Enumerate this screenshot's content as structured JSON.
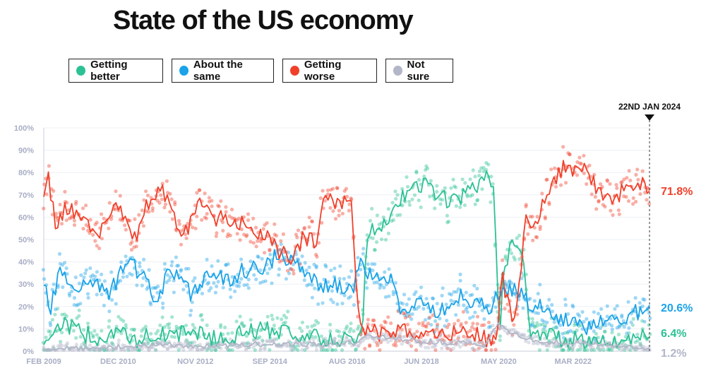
{
  "title": "State of the US economy",
  "legend": [
    {
      "label": "Getting better",
      "color": "#2cc194"
    },
    {
      "label": "About the same",
      "color": "#1aa3e8"
    },
    {
      "label": "Getting worse",
      "color": "#f0402a"
    },
    {
      "label": "Not sure",
      "color": "#b2b6c8"
    }
  ],
  "chart_data": {
    "type": "line",
    "title": "State of the US economy",
    "xlabel": "",
    "ylabel": "",
    "ylim": [
      0,
      100
    ],
    "xlim": [
      2009.08,
      2024.06
    ],
    "y_ticks": [
      "0%",
      "10%",
      "20%",
      "30%",
      "40%",
      "50%",
      "60%",
      "70%",
      "80%",
      "90%",
      "100%"
    ],
    "x_ticks": [
      {
        "label": "FEB 2009",
        "x": 2009.08
      },
      {
        "label": "DEC 2010",
        "x": 2010.92
      },
      {
        "label": "NOV 2012",
        "x": 2012.83
      },
      {
        "label": "SEP 2014",
        "x": 2014.67
      },
      {
        "label": "AUG 2016",
        "x": 2016.58
      },
      {
        "label": "JUN 2018",
        "x": 2018.42
      },
      {
        "label": "MAY 2020",
        "x": 2020.33
      },
      {
        "label": "MAR 2022",
        "x": 2022.17
      }
    ],
    "annotation": {
      "label": "22ND JAN 2024",
      "x": 2024.06
    },
    "series": [
      {
        "name": "Getting better",
        "color": "#2cc194",
        "final_label": "6.4%",
        "x": [
          2009.08,
          2009.3,
          2009.6,
          2010.0,
          2010.5,
          2010.9,
          2011.3,
          2011.7,
          2012.2,
          2012.8,
          2013.4,
          2014.0,
          2014.8,
          2015.5,
          2016.0,
          2016.7,
          2016.95,
          2017.05,
          2017.3,
          2017.7,
          2018.0,
          2018.4,
          2018.6,
          2018.9,
          2019.3,
          2019.7,
          2020.0,
          2020.2,
          2020.35,
          2020.45,
          2020.7,
          2020.9,
          2021.1,
          2021.5,
          2022.0,
          2022.5,
          2023.0,
          2023.5,
          2024.06
        ],
        "values": [
          3,
          10,
          12,
          8,
          6,
          10,
          3,
          8,
          7,
          9,
          5,
          8,
          10,
          7,
          5,
          5,
          6,
          50,
          56,
          60,
          70,
          74,
          75,
          68,
          68,
          72,
          78,
          72,
          8,
          35,
          50,
          48,
          6,
          8,
          5,
          5,
          4,
          6,
          6.4
        ]
      },
      {
        "name": "About the same",
        "color": "#1aa3e8",
        "final_label": "20.6%",
        "x": [
          2009.08,
          2009.25,
          2009.5,
          2009.9,
          2010.3,
          2010.7,
          2011.1,
          2011.5,
          2011.9,
          2012.2,
          2012.7,
          2013.2,
          2013.6,
          2014.0,
          2014.5,
          2014.9,
          2015.4,
          2015.8,
          2016.2,
          2016.7,
          2016.95,
          2017.2,
          2017.5,
          2017.7,
          2017.9,
          2018.4,
          2018.9,
          2019.4,
          2019.8,
          2020.1,
          2020.3,
          2020.5,
          2020.8,
          2021.1,
          2021.5,
          2022.0,
          2022.5,
          2023.0,
          2023.5,
          2024.06
        ],
        "values": [
          30,
          19,
          38,
          28,
          32,
          25,
          40,
          35,
          20,
          38,
          26,
          36,
          32,
          36,
          38,
          43,
          38,
          30,
          30,
          28,
          40,
          32,
          30,
          33,
          18,
          20,
          18,
          25,
          22,
          18,
          25,
          28,
          27,
          22,
          18,
          14,
          11,
          16,
          15,
          20.6
        ]
      },
      {
        "name": "Getting worse",
        "color": "#f0402a",
        "final_label": "71.8%",
        "x": [
          2009.08,
          2009.2,
          2009.4,
          2009.6,
          2010.0,
          2010.4,
          2010.9,
          2011.3,
          2011.6,
          2012.0,
          2012.5,
          2012.9,
          2013.3,
          2013.8,
          2014.3,
          2014.7,
          2015.0,
          2015.3,
          2015.5,
          2015.8,
          2016.0,
          2016.4,
          2016.7,
          2016.85,
          2016.95,
          2017.1,
          2017.5,
          2018.0,
          2018.5,
          2019.0,
          2019.5,
          2020.0,
          2020.3,
          2020.4,
          2020.6,
          2020.75,
          2021.0,
          2021.3,
          2021.6,
          2021.9,
          2022.2,
          2022.5,
          2022.9,
          2023.3,
          2023.7,
          2024.06
        ],
        "values": [
          68,
          78,
          52,
          66,
          60,
          52,
          68,
          48,
          65,
          74,
          50,
          66,
          60,
          58,
          54,
          50,
          43,
          42,
          52,
          48,
          66,
          68,
          65,
          20,
          12,
          9,
          7,
          9,
          8,
          7,
          8,
          6,
          4,
          34,
          18,
          16,
          58,
          60,
          75,
          82,
          80,
          82,
          68,
          70,
          76,
          71.8
        ]
      },
      {
        "name": "Not sure",
        "color": "#b2b6c8",
        "final_label": "1.2%",
        "x": [
          2009.08,
          2010.0,
          2011.0,
          2012.0,
          2013.0,
          2014.0,
          2015.0,
          2016.0,
          2016.9,
          2017.1,
          2018.0,
          2019.0,
          2020.0,
          2020.3,
          2020.6,
          2021.0,
          2021.5,
          2022.0,
          2023.0,
          2024.06
        ],
        "values": [
          1,
          1,
          2,
          3,
          2,
          3,
          3,
          3,
          4,
          7,
          5,
          4,
          3,
          12,
          8,
          6,
          4,
          4,
          3,
          1.2
        ]
      }
    ]
  }
}
